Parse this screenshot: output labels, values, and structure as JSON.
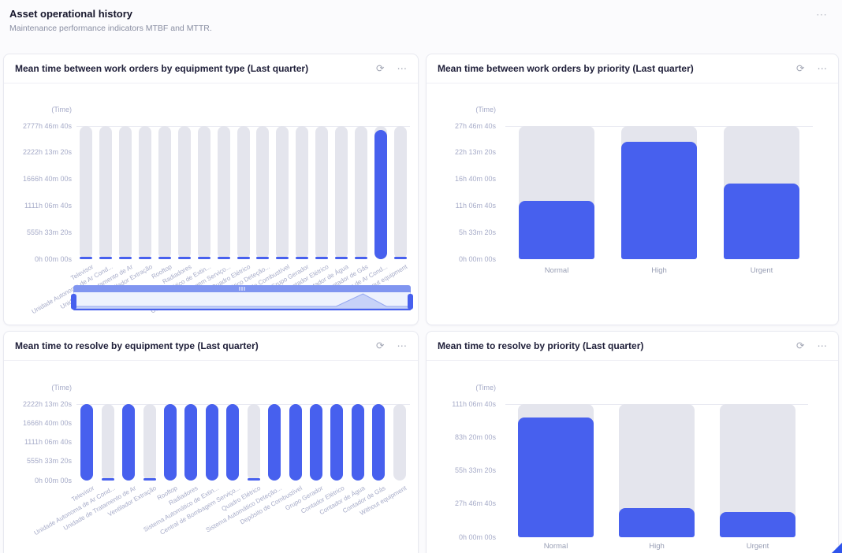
{
  "page": {
    "title": "Asset operational history",
    "subtitle": "Maintenance performance indicators MTBF and MTTR."
  },
  "icons": {
    "refresh": "⟳",
    "more": "⋯"
  },
  "colors": {
    "accent_blue": "#4760ee",
    "bar_track": "#e4e5ed",
    "axis_text": "#a6abc8",
    "card_border": "#e8e9f0"
  },
  "chart_data": [
    {
      "type": "bar",
      "title": "Mean time between work orders by equipment type (Last quarter)",
      "axis_unit": "(Time)",
      "ylim_hours": [
        0,
        2777.78
      ],
      "ytick_labels": [
        "2777h 46m 40s",
        "2222h 13m 20s",
        "1666h 40m 00s",
        "1111h 06m 40s",
        "555h 33m 20s",
        "0h 00m 00s"
      ],
      "categories": [
        "Televisor",
        "Unidade Autonoma de Ar Cond...",
        "Unidade de Tratamento de Ar",
        "Ventilador Extração",
        "Rooftop",
        "Radiadores",
        "Sistema Automático de Extin...",
        "Central de Bombagem Serviço...",
        "Quadro Elétrico",
        "Sistema Automático Deteção...",
        "Depósito de Combustível",
        "Grupo Gerador",
        "Contador Elétrico",
        "Contador de Água",
        "Contador de Gás",
        "Unidade Exterior de Ar Cond...",
        "Without equipment"
      ],
      "values_hours": [
        45,
        40,
        42,
        38,
        44,
        41,
        39,
        43,
        40,
        42,
        38,
        44,
        41,
        39,
        42,
        2700,
        43
      ],
      "x_labels_rotated": true,
      "grid": false,
      "legend": "none",
      "datazoom": {
        "present": true,
        "range_start_pct": 0,
        "range_end_pct": 100
      }
    },
    {
      "type": "bar",
      "title": "Mean time between work orders by priority (Last quarter)",
      "axis_unit": "(Time)",
      "ylim_hours": [
        0,
        27.78
      ],
      "ytick_labels": [
        "27h 46m 40s",
        "22h 13m 20s",
        "16h 40m 00s",
        "11h 06m 40s",
        "5h 33m 20s",
        "0h 00m 00s"
      ],
      "categories": [
        "Normal",
        "High",
        "Urgent"
      ],
      "values_hours": [
        12.2,
        24.5,
        15.8
      ],
      "x_labels_rotated": false,
      "grid": false,
      "legend": "none"
    },
    {
      "type": "bar",
      "title": "Mean time to resolve by equipment type (Last quarter)",
      "axis_unit": "(Time)",
      "ylim_hours": [
        0,
        2222.22
      ],
      "ytick_labels": [
        "2222h 13m 20s",
        "1666h 40m 00s",
        "1111h 06m 40s",
        "555h 33m 20s",
        "0h 00m 00s"
      ],
      "categories": [
        "Televisor",
        "Unidade Autonoma de Ar Cond...",
        "Unidade de Tratamento de Ar",
        "Ventilador Extração",
        "Rooftop",
        "Radiadores",
        "Sistema Automático de Extin...",
        "Central de Bombagem Serviço...",
        "Quadro Elétrico",
        "Sistema Automático Deteção...",
        "Depósito de Combustível",
        "Grupo Gerador",
        "Contador Elétrico",
        "Contador de Água",
        "Contador de Gás",
        "Without equipment"
      ],
      "values_hours": [
        2222,
        65,
        2222,
        80,
        2222,
        2222,
        2222,
        2222,
        75,
        2222,
        2222,
        2222,
        2222,
        2222,
        2222,
        0
      ],
      "x_labels_rotated": true,
      "grid": false,
      "legend": "none"
    },
    {
      "type": "bar",
      "title": "Mean time to resolve by priority (Last quarter)",
      "axis_unit": "(Time)",
      "ylim_hours": [
        0,
        111.11
      ],
      "ytick_labels": [
        "111h 06m 40s",
        "83h 20m 00s",
        "55h 33m 20s",
        "27h 46m 40s",
        "0h 00m 00s"
      ],
      "categories": [
        "Normal",
        "High",
        "Urgent"
      ],
      "values_hours": [
        100,
        24.3,
        21
      ],
      "x_labels_rotated": false,
      "grid": false,
      "legend": "none"
    }
  ]
}
